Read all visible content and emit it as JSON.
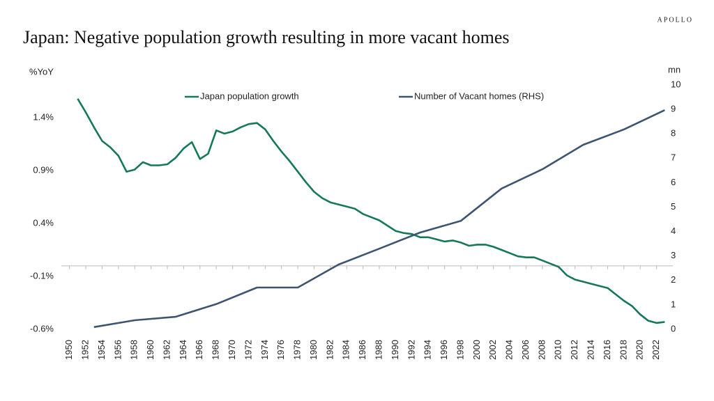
{
  "brand": "APOLLO",
  "chart_data": {
    "type": "line",
    "title": "Japan: Negative population growth resulting in more vacant homes",
    "y_label": "%YoY",
    "y2_label": "mn",
    "xlim": [
      1949,
      2024
    ],
    "xticks": [
      1950,
      1952,
      1954,
      1956,
      1958,
      1960,
      1962,
      1964,
      1966,
      1968,
      1970,
      1972,
      1974,
      1976,
      1978,
      1980,
      1982,
      1984,
      1986,
      1988,
      1990,
      1992,
      1994,
      1996,
      1998,
      2000,
      2002,
      2004,
      2006,
      2008,
      2010,
      2012,
      2014,
      2016,
      2018,
      2020,
      2022
    ],
    "ylim": [
      -0.6,
      1.71
    ],
    "yticks": [
      {
        "value": -0.6,
        "label": "-0.6%"
      },
      {
        "value": -0.1,
        "label": "-0.1%"
      },
      {
        "value": 0.4,
        "label": "0.4%"
      },
      {
        "value": 0.9,
        "label": "0.9%"
      },
      {
        "value": 1.4,
        "label": "1.4%"
      }
    ],
    "y2lim": [
      0,
      10
    ],
    "y2ticks": [
      0,
      1,
      2,
      3,
      4,
      5,
      6,
      7,
      8,
      9,
      10
    ],
    "grid": false,
    "series": [
      {
        "name": "Japan population growth",
        "color": "#16785a",
        "x": [
          1951,
          1952,
          1953,
          1954,
          1955,
          1956,
          1957,
          1958,
          1959,
          1960,
          1961,
          1962,
          1963,
          1964,
          1965,
          1966,
          1967,
          1968,
          1969,
          1970,
          1971,
          1972,
          1973,
          1974,
          1975,
          1976,
          1977,
          1978,
          1979,
          1980,
          1981,
          1982,
          1983,
          1984,
          1985,
          1986,
          1987,
          1988,
          1989,
          1990,
          1991,
          1992,
          1993,
          1994,
          1995,
          1996,
          1997,
          1998,
          1999,
          2000,
          2001,
          2002,
          2003,
          2004,
          2005,
          2006,
          2007,
          2008,
          2009,
          2010,
          2011,
          2012,
          2013,
          2014,
          2015,
          2016,
          2017,
          2018,
          2019,
          2020,
          2021,
          2022,
          2023
        ],
        "values": [
          1.58,
          1.45,
          1.31,
          1.18,
          1.12,
          1.04,
          0.89,
          0.91,
          0.98,
          0.95,
          0.95,
          0.96,
          1.02,
          1.11,
          1.17,
          1.01,
          1.06,
          1.28,
          1.25,
          1.27,
          1.31,
          1.34,
          1.35,
          1.29,
          1.18,
          1.08,
          0.99,
          0.89,
          0.79,
          0.7,
          0.64,
          0.6,
          0.58,
          0.56,
          0.54,
          0.49,
          0.46,
          0.43,
          0.38,
          0.33,
          0.31,
          0.3,
          0.27,
          0.27,
          0.25,
          0.23,
          0.24,
          0.22,
          0.19,
          0.2,
          0.2,
          0.18,
          0.15,
          0.12,
          0.09,
          0.08,
          0.08,
          0.05,
          0.02,
          -0.01,
          -0.09,
          -0.13,
          -0.15,
          -0.17,
          -0.19,
          -0.21,
          -0.27,
          -0.33,
          -0.38,
          -0.46,
          -0.52,
          -0.54,
          -0.53
        ]
      },
      {
        "name": "Number of Vacant homes (RHS)",
        "color": "#3d5570",
        "axis": "y2",
        "x": [
          1953,
          1958,
          1963,
          1968,
          1973,
          1978,
          1983,
          1988,
          1993,
          1998,
          2003,
          2008,
          2013,
          2018,
          2023
        ],
        "values": [
          0.09,
          0.37,
          0.51,
          1.03,
          1.71,
          1.71,
          2.65,
          3.3,
          3.96,
          4.44,
          5.76,
          6.55,
          7.55,
          8.18,
          8.97
        ]
      }
    ],
    "legend": "top"
  }
}
